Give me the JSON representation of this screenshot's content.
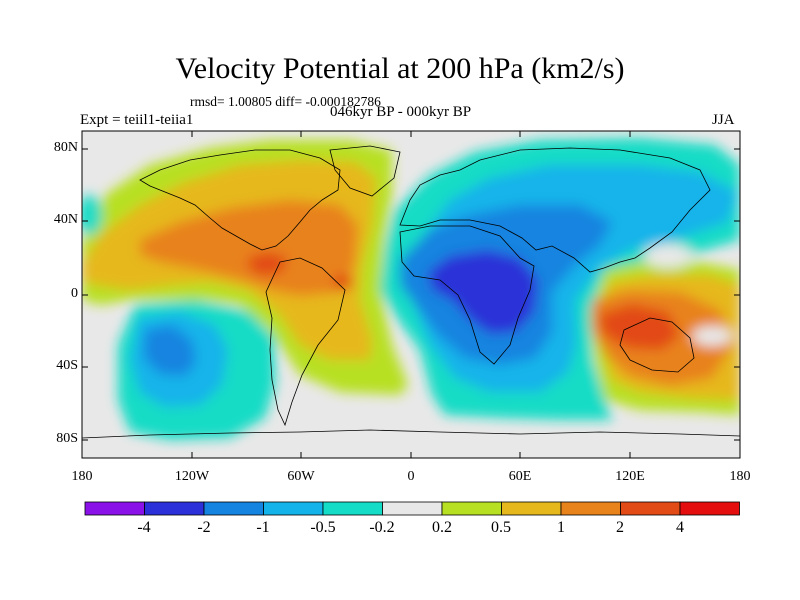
{
  "title": "Velocity Potential at 200 hPa (km2/s)",
  "stats_text": "rmsd= 1.00805  diff= -0.000182786",
  "experiment_text": "Expt = teiil1-teiia1",
  "period_text": "046kyr BP - 000kyr BP",
  "season_text": "JJA",
  "y_axis_labels": [
    "80N",
    "40N",
    "0",
    "40S",
    "80S"
  ],
  "x_axis_labels": [
    "180",
    "120W",
    "60W",
    "0",
    "60E",
    "120E",
    "180"
  ],
  "colorbar": {
    "labels": [
      "-4",
      "-2",
      "-1",
      "-0.5",
      "-0.2",
      "0.2",
      "0.5",
      "1",
      "2",
      "4"
    ],
    "colors": [
      "#8a12e8",
      "#2b30d8",
      "#1584e0",
      "#14b4ea",
      "#14dcc6",
      "#e8e8e8",
      "#b8e022",
      "#e6b81e",
      "#e8821a",
      "#e24a16",
      "#e40e0e"
    ]
  }
}
